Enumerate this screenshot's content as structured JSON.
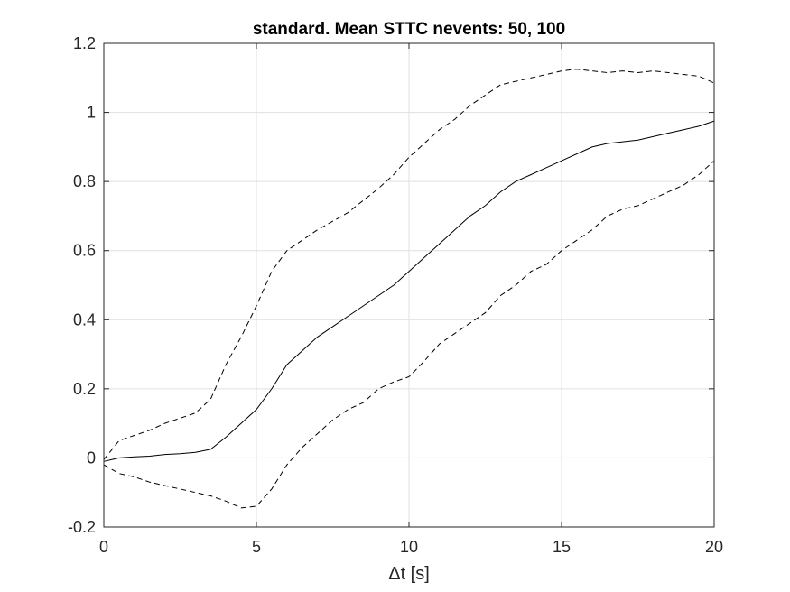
{
  "chart_data": {
    "type": "line",
    "title": "standard.  Mean STTC nevents: 50, 100",
    "xlabel": "Δt [s]",
    "ylabel": "",
    "xlim": [
      0,
      20
    ],
    "ylim": [
      -0.2,
      1.2
    ],
    "xticks": [
      0,
      5,
      10,
      15,
      20
    ],
    "yticks": [
      -0.2,
      0,
      0.2,
      0.4,
      0.6,
      0.8,
      1,
      1.2
    ],
    "xtick_labels": [
      "0",
      "5",
      "10",
      "15",
      "20"
    ],
    "ytick_labels": [
      "-0.2",
      "0",
      "0.2",
      "0.4",
      "0.6",
      "0.8",
      "1",
      "1.2"
    ],
    "grid": true,
    "series": [
      {
        "style": "solid",
        "color": "#000000",
        "x": [
          0,
          0.5,
          1,
          1.5,
          2,
          2.5,
          3,
          3.5,
          4,
          4.5,
          5,
          5.5,
          6,
          6.5,
          7,
          7.5,
          8,
          8.5,
          9,
          9.5,
          10,
          10.5,
          11,
          11.5,
          12,
          12.5,
          13,
          13.5,
          14,
          14.5,
          15,
          15.5,
          16,
          16.5,
          17,
          17.5,
          18,
          18.5,
          19,
          19.5,
          20
        ],
        "y": [
          -0.01,
          0.0,
          0.003,
          0.005,
          0.01,
          0.012,
          0.016,
          0.025,
          0.06,
          0.1,
          0.14,
          0.2,
          0.27,
          0.31,
          0.35,
          0.38,
          0.41,
          0.44,
          0.47,
          0.5,
          0.54,
          0.58,
          0.62,
          0.66,
          0.7,
          0.73,
          0.77,
          0.8,
          0.82,
          0.84,
          0.86,
          0.88,
          0.9,
          0.91,
          0.915,
          0.92,
          0.93,
          0.94,
          0.95,
          0.96,
          0.975
        ]
      },
      {
        "style": "dashed",
        "color": "#000000",
        "x": [
          0,
          0.5,
          1,
          1.5,
          2,
          2.5,
          3,
          3.5,
          4,
          4.5,
          5,
          5.5,
          6,
          6.5,
          7,
          7.5,
          8,
          8.5,
          9,
          9.5,
          10,
          10.5,
          11,
          11.5,
          12,
          12.5,
          13,
          13.5,
          14,
          14.5,
          15,
          15.5,
          16,
          16.5,
          17,
          17.5,
          18,
          18.5,
          19,
          19.5,
          20
        ],
        "y": [
          -0.005,
          0.05,
          0.065,
          0.08,
          0.1,
          0.115,
          0.13,
          0.17,
          0.27,
          0.35,
          0.44,
          0.54,
          0.6,
          0.63,
          0.66,
          0.685,
          0.71,
          0.745,
          0.78,
          0.82,
          0.87,
          0.91,
          0.95,
          0.98,
          1.02,
          1.05,
          1.08,
          1.09,
          1.1,
          1.11,
          1.12,
          1.125,
          1.12,
          1.115,
          1.12,
          1.115,
          1.12,
          1.115,
          1.11,
          1.105,
          1.085
        ]
      },
      {
        "style": "dashed",
        "color": "#000000",
        "x": [
          0,
          0.5,
          1,
          1.5,
          2,
          2.5,
          3,
          3.5,
          4,
          4.5,
          5,
          5.5,
          6,
          6.5,
          7,
          7.5,
          8,
          8.5,
          9,
          9.5,
          10,
          10.5,
          11,
          11.5,
          12,
          12.5,
          13,
          13.5,
          14,
          14.5,
          15,
          15.5,
          16,
          16.5,
          17,
          17.5,
          18,
          18.5,
          19,
          19.5,
          20
        ],
        "y": [
          -0.02,
          -0.045,
          -0.055,
          -0.07,
          -0.08,
          -0.09,
          -0.1,
          -0.11,
          -0.125,
          -0.145,
          -0.14,
          -0.09,
          -0.02,
          0.03,
          0.07,
          0.11,
          0.14,
          0.16,
          0.2,
          0.22,
          0.235,
          0.28,
          0.33,
          0.36,
          0.39,
          0.42,
          0.47,
          0.5,
          0.54,
          0.56,
          0.6,
          0.63,
          0.66,
          0.7,
          0.72,
          0.73,
          0.75,
          0.77,
          0.79,
          0.82,
          0.86
        ]
      }
    ]
  }
}
